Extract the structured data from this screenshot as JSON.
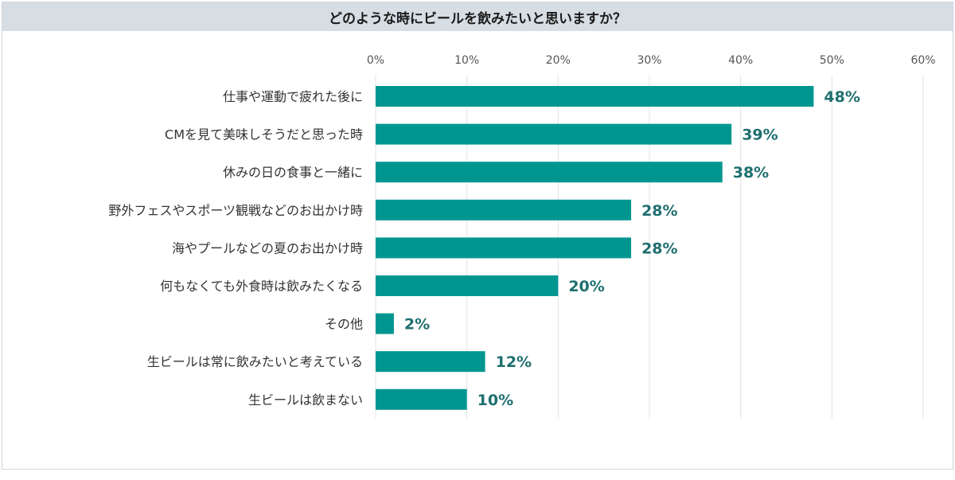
{
  "chart_data": {
    "type": "bar",
    "orientation": "horizontal",
    "title": "どのような時にビールを飲みたいと思いますか？",
    "categories": [
      "仕事や運動で疲れた後に",
      "CMを見て美味しそうだと思った時",
      "休みの日の食事と一緒に",
      "野外フェスやスポーツ観戦などのお出かけ時",
      "海やプールなどの夏のお出かけ時",
      "何もなくても外食時は飲みたくなる",
      "その他",
      "生ビールは常に飲みたいと考えている",
      "生ビールは飲まない"
    ],
    "values": [
      48,
      39,
      38,
      28,
      28,
      20,
      2,
      12,
      10
    ],
    "value_labels": [
      "48%",
      "39%",
      "38%",
      "28%",
      "28%",
      "20%",
      "2%",
      "12%",
      "10%"
    ],
    "xlim": [
      0,
      60
    ],
    "xticks": [
      0,
      10,
      20,
      30,
      40,
      50,
      60
    ],
    "xtick_labels": [
      "0%",
      "10%",
      "20%",
      "30%",
      "40%",
      "50%",
      "60%"
    ],
    "grid": true,
    "axis_position": "top",
    "bar_color": "#009690",
    "label_color": "#1f6f6f"
  }
}
